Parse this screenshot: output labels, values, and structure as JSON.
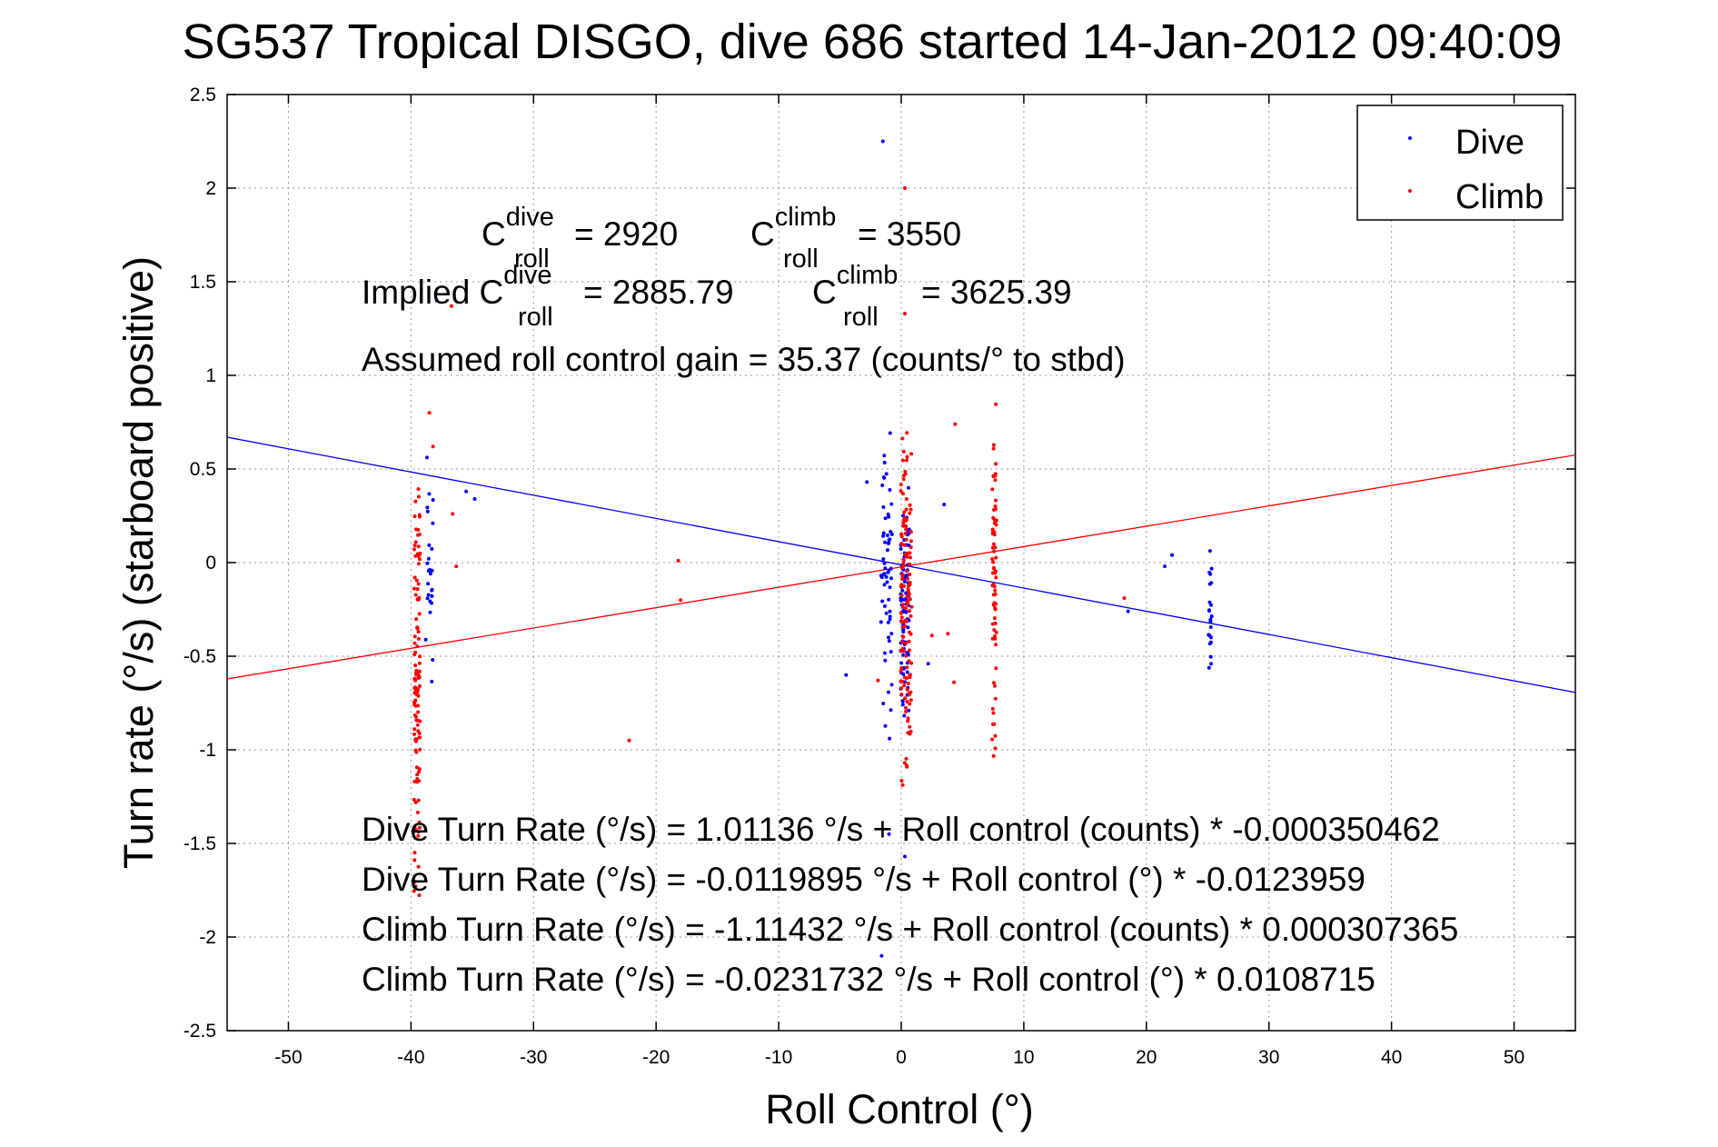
{
  "chart_data": {
    "type": "scatter",
    "title": "SG537 Tropical DISGO, dive 686 started 14-Jan-2012 09:40:09",
    "xlabel": "Roll Control (°)",
    "ylabel": "Turn rate (°/s)  (starboard positive)",
    "xlim": [
      -55,
      55
    ],
    "ylim": [
      -2.5,
      2.5
    ],
    "xticks": [
      -50,
      -40,
      -30,
      -20,
      -10,
      0,
      10,
      20,
      30,
      40,
      50
    ],
    "yticks": [
      -2.5,
      -2,
      -1.5,
      -1,
      -0.5,
      0,
      0.5,
      1,
      1.5,
      2,
      2.5
    ],
    "grid": true,
    "legend_position": "top-right",
    "series": [
      {
        "name": "Dive",
        "color": "#0000ff",
        "fit_line": {
          "intercept": -0.0119895,
          "slope": -0.0123959
        },
        "clusters": [
          {
            "x": -38.5,
            "x_spread": 0.6,
            "y_min": -0.95,
            "y_max": 0.95,
            "n": 26
          },
          {
            "x": -1.2,
            "x_spread": 0.9,
            "y_min": -1.1,
            "y_max": 0.9,
            "n": 60
          },
          {
            "x": 0.3,
            "x_spread": 0.7,
            "y_min": -0.9,
            "y_max": 0.45,
            "n": 90
          },
          {
            "x": 25.2,
            "x_spread": 0.25,
            "y_min": -0.7,
            "y_max": 0.08,
            "n": 22
          }
        ],
        "points": [
          [
            -1.5,
            2.25
          ],
          [
            -37.9,
            1.4
          ],
          [
            -35.5,
            0.38
          ],
          [
            -34.8,
            0.34
          ],
          [
            -4.5,
            -0.6
          ],
          [
            -2.8,
            0.43
          ],
          [
            3.5,
            0.31
          ],
          [
            2.2,
            -0.54
          ],
          [
            18.5,
            -0.26
          ],
          [
            21.5,
            -0.02
          ],
          [
            22.1,
            0.04
          ],
          [
            -1.6,
            -2.1
          ],
          [
            0.3,
            -1.57
          ],
          [
            -1.0,
            -1.45
          ]
        ]
      },
      {
        "name": "Climb",
        "color": "#ff0000",
        "fit_line": {
          "intercept": -0.0231732,
          "slope": 0.0108715
        },
        "clusters": [
          {
            "x": -39.5,
            "x_spread": 0.5,
            "y_min": -1.85,
            "y_max": 0.6,
            "n": 120
          },
          {
            "x": 0.4,
            "x_spread": 0.9,
            "y_min": -1.3,
            "y_max": 0.9,
            "n": 140
          },
          {
            "x": 7.6,
            "x_spread": 0.35,
            "y_min": -1.15,
            "y_max": 0.95,
            "n": 70
          }
        ],
        "points": [
          [
            0.3,
            2.0
          ],
          [
            0.3,
            1.33
          ],
          [
            -36.7,
            1.37
          ],
          [
            -38.5,
            0.8
          ],
          [
            -38.2,
            0.62
          ],
          [
            -36.6,
            0.26
          ],
          [
            -36.3,
            -0.02
          ],
          [
            -18.2,
            0.01
          ],
          [
            -18.0,
            -0.2
          ],
          [
            -22.2,
            -0.95
          ],
          [
            4.4,
            0.74
          ],
          [
            2.5,
            -0.39
          ],
          [
            3.8,
            -0.38
          ],
          [
            4.3,
            -0.64
          ],
          [
            18.2,
            -0.19
          ],
          [
            -1.9,
            -0.63
          ]
        ]
      }
    ],
    "annotations": {
      "c_roll_dive": {
        "base": "C",
        "sup": "dive",
        "sub": "roll",
        "value": "= 2920"
      },
      "c_roll_climb": {
        "base": "C",
        "sup": "climb",
        "sub": "roll",
        "value": "= 3550"
      },
      "implied_label": "Implied C",
      "implied_dive": {
        "sup": "dive",
        "sub": "roll",
        "value": "= 2885.79"
      },
      "implied_climb": {
        "base": "C",
        "sup": "climb",
        "sub": "roll",
        "value": "= 3625.39"
      },
      "gain": "Assumed roll control gain = 35.37 (counts/° to stbd)",
      "fits": [
        "Dive Turn Rate (°/s) = 1.01136 °/s + Roll control (counts) * -0.000350462",
        "Dive Turn Rate (°/s) = -0.0119895 °/s + Roll control (°) * -0.0123959",
        "Climb Turn Rate (°/s) = -1.11432 °/s + Roll control (counts) * 0.000307365",
        "Climb Turn Rate (°/s) = -0.0231732 °/s + Roll control (°) * 0.0108715"
      ]
    }
  }
}
